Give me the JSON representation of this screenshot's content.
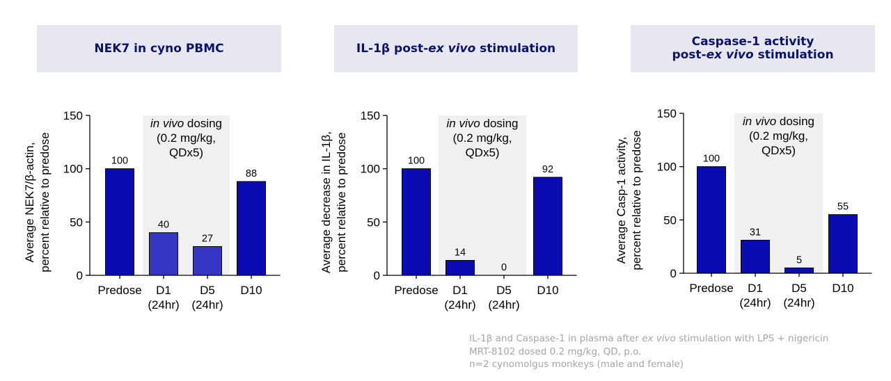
{
  "headers": [
    {
      "pre": "NEK7 in cyno PBMC",
      "ital": "",
      "post": "",
      "line2_pre": "",
      "line2_ital": "",
      "line2_post": ""
    },
    {
      "pre": "IL-1β post-",
      "ital": "ex vivo",
      "post": " stimulation",
      "line2_pre": "",
      "line2_ital": "",
      "line2_post": ""
    },
    {
      "pre": "Caspase-1 activity",
      "ital": "",
      "post": "",
      "line2_pre": "post-",
      "line2_ital": "ex vivo",
      "line2_post": " stimulation"
    }
  ],
  "shade_label": {
    "ital": "in vivo",
    "rest": " dosing",
    "line2": "(0.2 mg/kg,",
    "line3": "QDx5)"
  },
  "footnote": {
    "line1_pre": "IL-1β and Caspase-1 in plasma after ",
    "line1_ital": "ex vivo",
    "line1_post": " stimulation with LPS + nigericin",
    "line2": "MRT-8102 dosed 0.2 mg/kg, QD, p.o.",
    "line3": "n=2 cynomolgus monkeys (male and female)"
  },
  "colors": {
    "bar_dark": "#0b0bb3",
    "bar_light": "#3535c4",
    "shade": "#f0f0f0",
    "header_bg": "#e6e7f0",
    "header_text": "#0b1270"
  },
  "chart_data": [
    {
      "type": "bar",
      "ylabel": [
        "Average NEK7/β-actin,",
        "percent relative to predose"
      ],
      "ylim": [
        0,
        150
      ],
      "yticks": [
        0,
        50,
        100,
        150
      ],
      "categories": [
        [
          "Predose"
        ],
        [
          "D1",
          "(24hr)"
        ],
        [
          "D5",
          "(24hr)"
        ],
        [
          "D10"
        ]
      ],
      "values": [
        100,
        40,
        27,
        88
      ],
      "labels": [
        "100",
        "40",
        "27",
        "88"
      ],
      "bar_colors": [
        "dark",
        "light",
        "light",
        "dark"
      ]
    },
    {
      "type": "bar",
      "ylabel": [
        "Average decrease in IL-1β,",
        "percent relative to predose"
      ],
      "ylim": [
        0,
        150
      ],
      "yticks": [
        0,
        50,
        100,
        150
      ],
      "categories": [
        [
          "Predose"
        ],
        [
          "D1",
          "(24hr)"
        ],
        [
          "D5",
          "(24hr)"
        ],
        [
          "D10"
        ]
      ],
      "values": [
        100,
        14,
        0,
        92
      ],
      "labels": [
        "100",
        "14",
        "0",
        "92"
      ],
      "bar_colors": [
        "dark",
        "dark",
        "dark",
        "dark"
      ]
    },
    {
      "type": "bar",
      "ylabel": [
        "Average Casp-1 activity,",
        "percent relative to predose"
      ],
      "ylim": [
        0,
        150
      ],
      "yticks": [
        0,
        50,
        100,
        150
      ],
      "categories": [
        [
          "Predose"
        ],
        [
          "D1",
          "(24hr)"
        ],
        [
          "D5",
          "(24hr)"
        ],
        [
          "D10"
        ]
      ],
      "values": [
        100,
        31,
        5,
        55
      ],
      "labels": [
        "100",
        "31",
        "5",
        "55"
      ],
      "bar_colors": [
        "dark",
        "dark",
        "dark",
        "dark"
      ]
    }
  ]
}
